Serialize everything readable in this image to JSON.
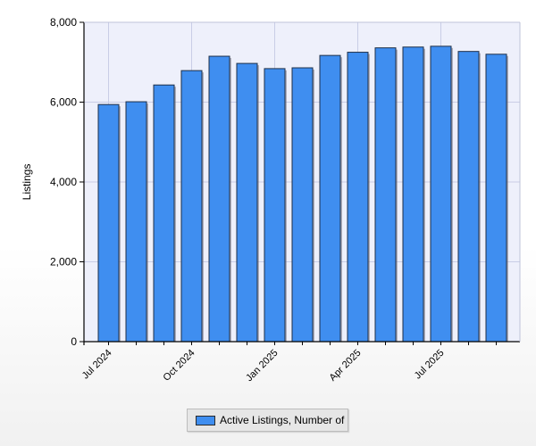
{
  "chart_data": {
    "type": "bar",
    "title": "",
    "xlabel": "",
    "ylabel": "Listings",
    "ylim": [
      0,
      8000
    ],
    "yticks": [
      "0",
      "2,000",
      "4,000",
      "6,000",
      "8,000"
    ],
    "ytick_values": [
      0,
      2000,
      4000,
      6000,
      8000
    ],
    "xtick_labels": [
      {
        "index": 0,
        "label": "Jul 2024"
      },
      {
        "index": 3,
        "label": "Oct 2024"
      },
      {
        "index": 6,
        "label": "Jan 2025"
      },
      {
        "index": 9,
        "label": "Apr 2025"
      },
      {
        "index": 12,
        "label": "Jul 2025"
      }
    ],
    "categories": [
      "Jul 2024",
      "Aug 2024",
      "Sep 2024",
      "Oct 2024",
      "Nov 2024",
      "Dec 2024",
      "Jan 2025",
      "Feb 2025",
      "Mar 2025",
      "Apr 2025",
      "May 2025",
      "Jun 2025",
      "Jul 2025",
      "Aug 2025",
      "Sep 2025"
    ],
    "series": [
      {
        "name": "Active Listings, Number of",
        "values": [
          5940,
          6010,
          6430,
          6790,
          7150,
          6970,
          6840,
          6860,
          7170,
          7250,
          7360,
          7380,
          7400,
          7270,
          7200
        ]
      }
    ],
    "grid": true,
    "legend_position": "bottom"
  },
  "colors": {
    "bar_fill": "#3f8ef0",
    "bar_stroke": "#1e2f48",
    "plot_bg": "#eef0fb",
    "grid": "#c9cde6"
  }
}
